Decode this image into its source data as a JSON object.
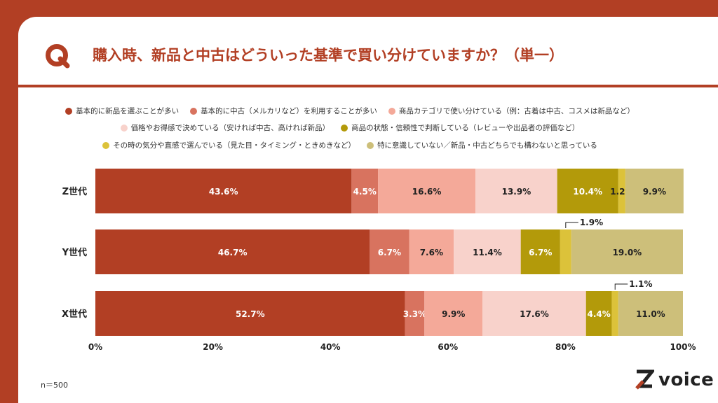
{
  "title": "購入時、新品と中古はどういった基準で買い分けていますか？（単一）",
  "note": "n＝500",
  "brand": "voice",
  "colors": [
    "#b23f24",
    "#d8735f",
    "#f4a999",
    "#f8d2cb",
    "#b39a0a",
    "#dcc23a",
    "#cdbf7a"
  ],
  "chart_data": {
    "type": "bar",
    "orientation": "horizontal-stacked-100",
    "categories": [
      "Z世代",
      "Y世代",
      "X世代"
    ],
    "series": [
      {
        "name": "基本的に新品を選ぶことが多い",
        "values": [
          43.6,
          46.7,
          52.7
        ]
      },
      {
        "name": "基本的に中古（メルカリなど）を利用することが多い",
        "values": [
          4.5,
          6.7,
          3.3
        ]
      },
      {
        "name": "商品カテゴリで使い分けている（例：古着は中古、コスメは新品など）",
        "values": [
          16.6,
          7.6,
          9.9
        ]
      },
      {
        "name": "価格やお得感で決めている（安ければ中古、高ければ新品）",
        "values": [
          13.9,
          11.4,
          17.6
        ]
      },
      {
        "name": "商品の状態・信頼性で判断している（レビューや出品者の評価など）",
        "values": [
          10.4,
          6.7,
          4.4
        ]
      },
      {
        "name": "その時の気分や直感で選んでいる（見た目・タイミング・ときめきなど）",
        "values": [
          1.2,
          1.9,
          1.1
        ]
      },
      {
        "name": "特に意識していない／新品・中古どちらでも構わないと思っている",
        "values": [
          9.9,
          19.0,
          11.0
        ]
      }
    ],
    "x_ticks": [
      "0%",
      "20%",
      "40%",
      "60%",
      "80%",
      "100%"
    ],
    "xlim": [
      0,
      100
    ],
    "legend_position": "top",
    "grid": false
  }
}
